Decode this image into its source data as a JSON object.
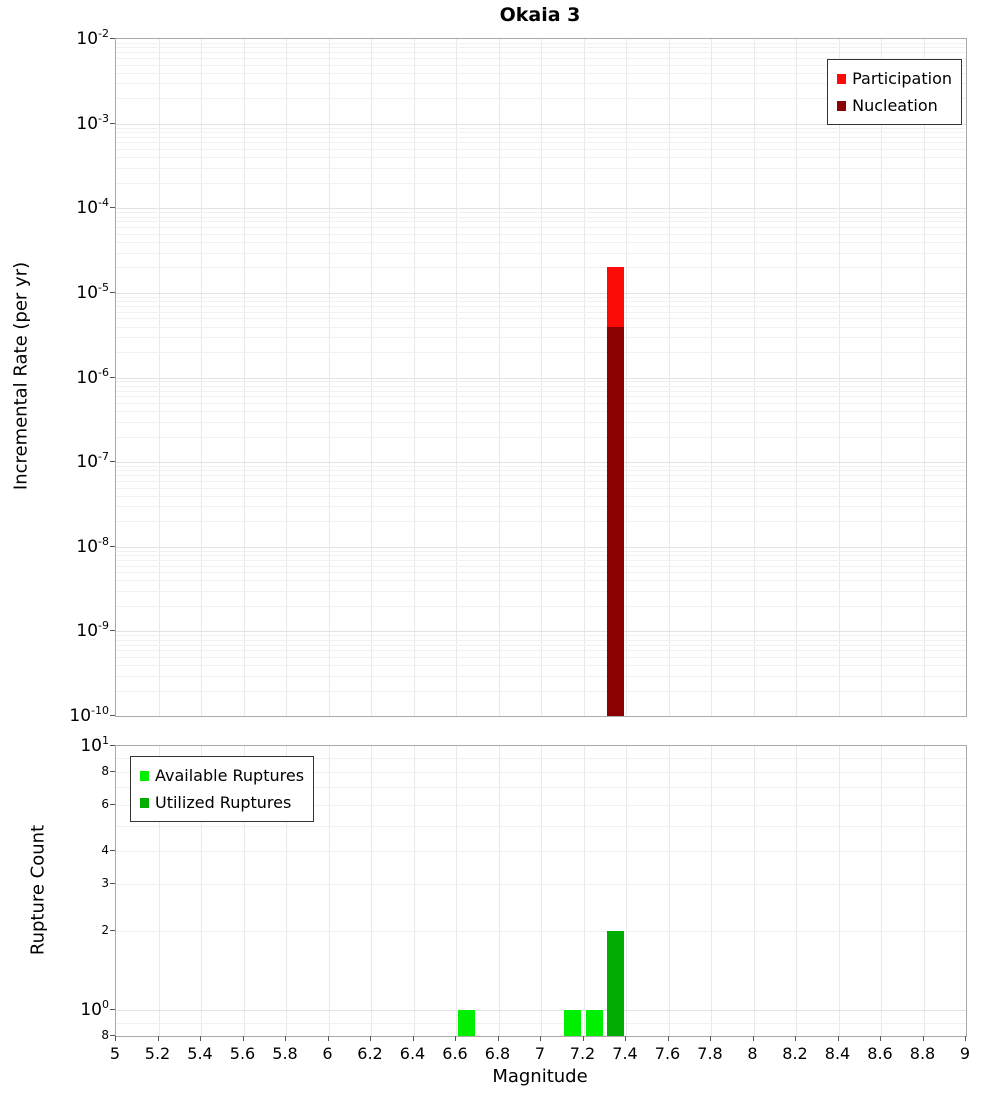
{
  "title": "Okaia 3",
  "chart_data": [
    {
      "type": "bar",
      "title": "Okaia 3",
      "xlabel": "",
      "ylabel": "Incremental Rate (per yr)",
      "yscale": "log",
      "xlim": [
        5,
        9
      ],
      "ylim": [
        1e-10,
        0.01
      ],
      "grid": true,
      "x_tick_step": 0.2,
      "y_tick_exponents": [
        -2,
        -3,
        -4,
        -5,
        -6,
        -7,
        -8,
        -9,
        -10
      ],
      "legend_position": "top-right",
      "series": [
        {
          "name": "Participation",
          "color": "#fb0b07",
          "bins": [
            {
              "x0": 7.3,
              "x1": 7.4,
              "value": 2e-05
            }
          ]
        },
        {
          "name": "Nucleation",
          "color": "#8b0000",
          "bins": [
            {
              "x0": 7.3,
              "x1": 7.4,
              "value": 4e-06
            }
          ]
        }
      ]
    },
    {
      "type": "bar",
      "title": "",
      "xlabel": "Magnitude",
      "ylabel": "Rupture Count",
      "yscale": "log",
      "xlim": [
        5,
        9
      ],
      "ylim": [
        0.8,
        10
      ],
      "grid": true,
      "x_tick_step": 0.2,
      "x_tick_labels": [
        "5",
        "5.2",
        "5.4",
        "5.6",
        "5.8",
        "6",
        "6.2",
        "6.4",
        "6.6",
        "6.8",
        "7",
        "7.2",
        "7.4",
        "7.6",
        "7.8",
        "8",
        "8.2",
        "8.4",
        "8.6",
        "8.8",
        "9"
      ],
      "y_ticks": [
        {
          "value": 10,
          "label": "10^1",
          "major": true
        },
        {
          "value": 8,
          "label": "8"
        },
        {
          "value": 6,
          "label": "6"
        },
        {
          "value": 4,
          "label": "4"
        },
        {
          "value": 3,
          "label": "3"
        },
        {
          "value": 2,
          "label": "2"
        },
        {
          "value": 1,
          "label": "10^0",
          "major": true
        },
        {
          "value": 0.8,
          "label": "8"
        }
      ],
      "legend_position": "top-left",
      "series": [
        {
          "name": "Available Ruptures",
          "color": "#00ef00",
          "bins": [
            {
              "x0": 6.6,
              "x1": 6.7,
              "value": 1
            },
            {
              "x0": 7.1,
              "x1": 7.2,
              "value": 1
            },
            {
              "x0": 7.2,
              "x1": 7.3,
              "value": 1
            }
          ]
        },
        {
          "name": "Utilized Ruptures",
          "color": "#00ad00",
          "bins": [
            {
              "x0": 7.3,
              "x1": 7.4,
              "value": 2
            }
          ]
        }
      ]
    }
  ]
}
